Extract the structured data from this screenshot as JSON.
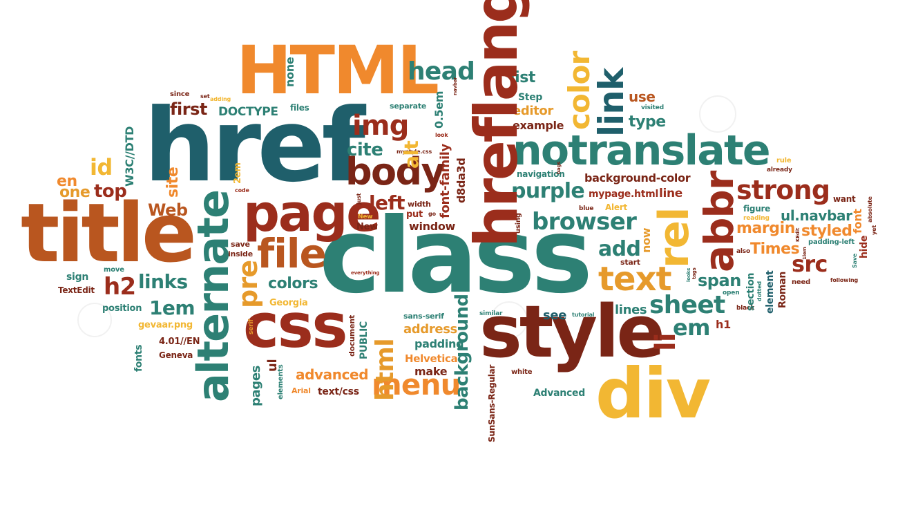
{
  "cloud": {
    "words": {
      "class": "class",
      "href": "href",
      "title": "title",
      "html_caps": "HTML",
      "style": "style",
      "hreflang": "hreflang",
      "notranslate": "notranslate",
      "css": "css",
      "div": "div",
      "page": "page",
      "alternate": "alternate",
      "body": "body",
      "file": "file",
      "abbr": "abbr",
      "rel": "rel",
      "text": "text",
      "strong": "strong",
      "browser": "browser",
      "link": "link",
      "color": "color",
      "img": "img",
      "head": "head",
      "sheet": "sheet",
      "menu": "menu",
      "purple": "purple",
      "pre": "pre",
      "html": "html",
      "links": "links",
      "li": "li",
      "em": "em",
      "src": "src",
      "id": "id",
      "top": "top",
      "h2": "h2",
      "first": "first",
      "one": "one",
      "en": "en",
      "cite": "cite",
      "alt": "alt",
      "left": "left",
      "colors": "colors",
      "Web": "Web",
      "1em": "1em",
      "add": "add",
      "span": "span",
      "background": "background",
      "styled": "styled",
      "margin": "margin",
      "Times": "Times",
      "ul_navbar": "ul.navbar",
      "type": "type",
      "use": "use",
      "editor": "editor",
      "example": "example",
      "list": "list",
      "Step": "Step",
      "DOCTYPE": "DOCTYPE",
      "site": "site",
      "w3c": "W3C//DTD",
      "window": "window",
      "font_family": "font-family",
      "d8da3d": "d8da3d",
      "none": "none",
      "navigation": "navigation",
      "background_color": "background-color",
      "mypage": "mypage.html",
      "line": "line",
      "lines": "lines",
      "see": "see",
      "address": "address",
      "padding": "padding",
      "Helvetica": "Helvetica",
      "make": "make",
      "advanced": "advanced",
      "text_css": "text/css",
      "Georgia": "Georgia",
      "gevaar": "gevaar.png",
      "position": "position",
      "TextEdit": "TextEdit",
      "sign": "sign",
      "4_01": "4.01//EN",
      "Geneva": "Geneva",
      "fonts": "fonts",
      "pages": "pages",
      "ul": "ul",
      "PUBLIC": "PUBLIC",
      "document": "document",
      "Arial": "Arial",
      "elements": "elements",
      "sans_serif": "sans-serif",
      "SunSans": "SunSans-Regular",
      "white": "white",
      "Advanced": "Advanced",
      "h1": "h1",
      "section": "section",
      "element": "element",
      "Roman": "Roman",
      "font": "font",
      "hide": "hide",
      "want": "want",
      "figure": "figure",
      "Alert": "Alert",
      "start": "start",
      "now": "now",
      "save": "save",
      "inside": "inside",
      "move": "move",
      "everything": "everything",
      "New_big": "New",
      "New_small": "New",
      "put": "put",
      "width": "width",
      "just": "just",
      "2em": "2em",
      "code": "code",
      "separate": "separate",
      "files": "files",
      "since": "since",
      "set": "set",
      "adding": "adding",
      "mystyle": "mystyle.css",
      "0_5em": "0.5em",
      "visited": "visited",
      "rule": "rule",
      "already": "already",
      "using": "using",
      "blue": "blue",
      "open": "open",
      "black": "black",
      "also": "also",
      "need": "need",
      "following": "following",
      "padding_left": "padding-left",
      "reading": "reading",
      "similar": "similar",
      "tutorial": "tutorial",
      "look": "look",
      "navbar": "navbar",
      "go": "go",
      "serif": "serif",
      "dotted": "dotted",
      "absolute": "absolute",
      "Save": "Save",
      "yet": "yet",
      "KEdit": "KEdit",
      "tlem": "1lem",
      "tags": "tags",
      "looks": "looks",
      "bags": "bags"
    },
    "colors": {
      "teal": "#2d8074",
      "dark_teal": "#1f5f6b",
      "orange": "#f0892d",
      "red": "#9b2d1c",
      "brown": "#b9561f",
      "yellow": "#f2b733",
      "gold": "#e69a2b",
      "dark_red": "#7a2516",
      "background": "#ffffff"
    }
  }
}
